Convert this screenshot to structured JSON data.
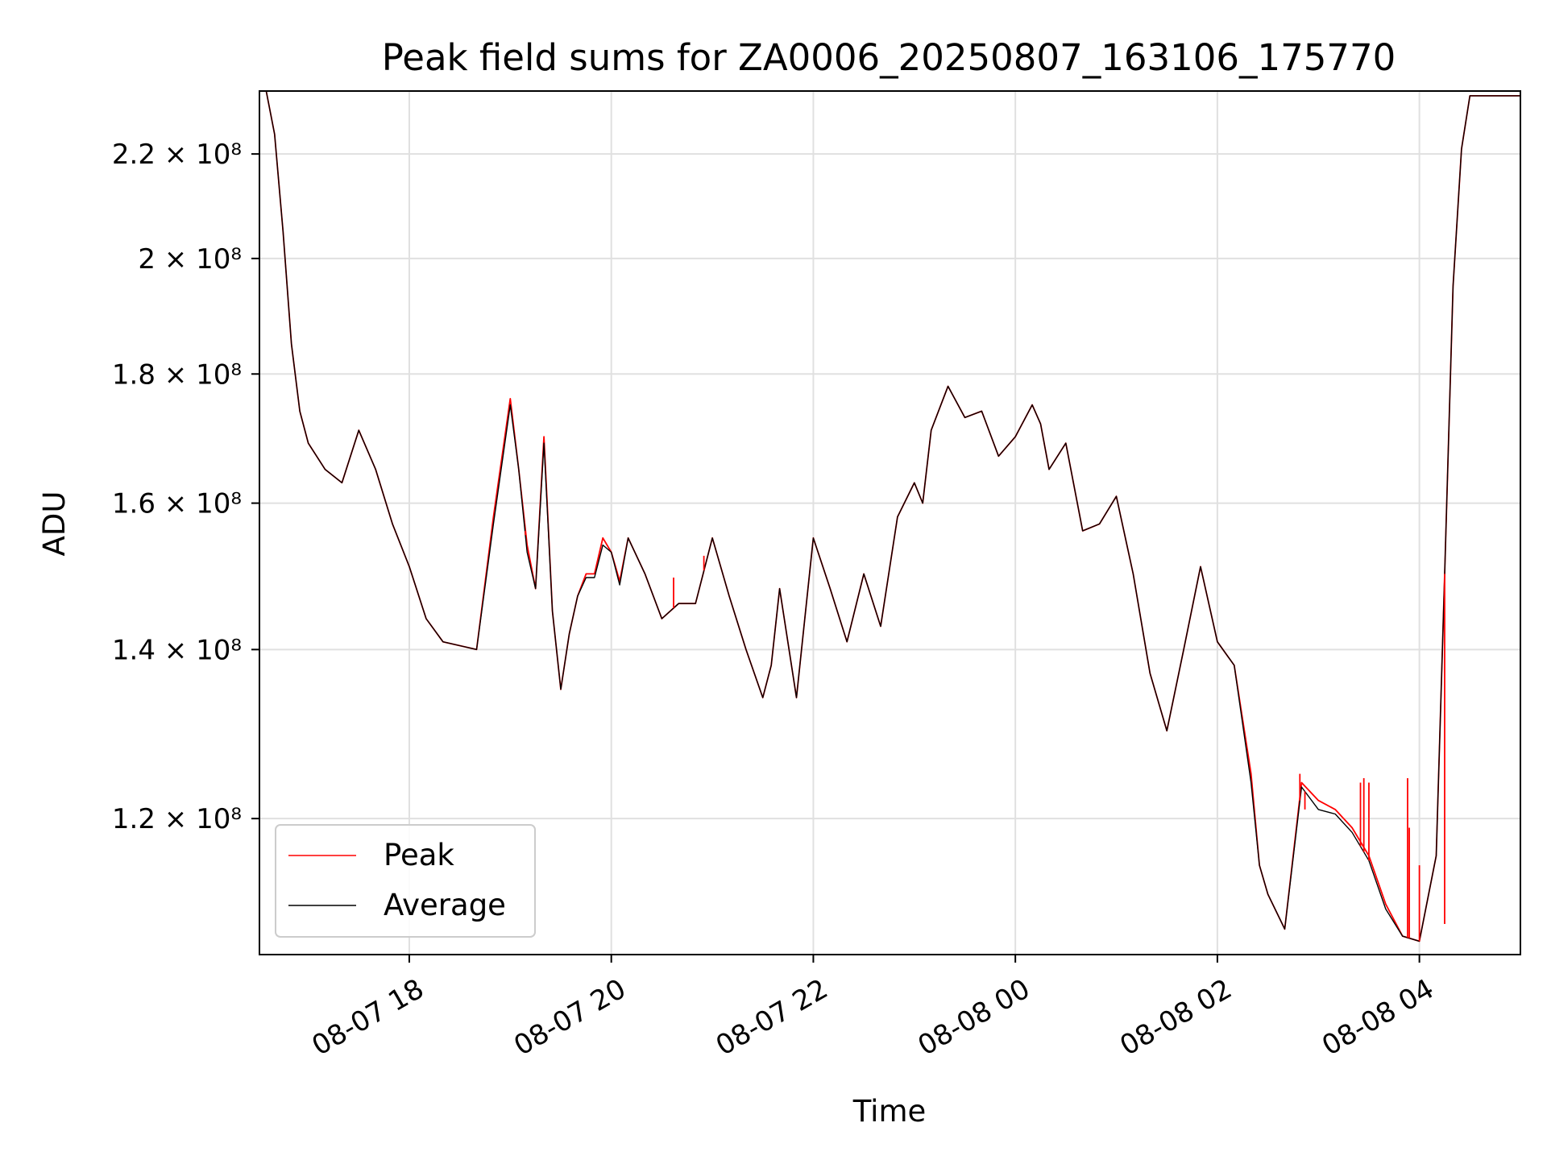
{
  "chart_data": {
    "type": "line",
    "title": "Peak field sums for ZA0006_20250807_163106_175770",
    "xlabel": "Time",
    "ylabel": "ADU",
    "yscale": "log",
    "grid": true,
    "legend_position": "lower-left",
    "xlim": [
      "2025-08-07 16:31",
      "2025-08-08 05:00"
    ],
    "ylim": [
      106000000,
      233000000
    ],
    "x_ticks": [
      {
        "value": "2025-08-07 18:00",
        "label": "08-07 18"
      },
      {
        "value": "2025-08-07 20:00",
        "label": "08-07 20"
      },
      {
        "value": "2025-08-07 22:00",
        "label": "08-07 22"
      },
      {
        "value": "2025-08-08 00:00",
        "label": "08-08 00"
      },
      {
        "value": "2025-08-08 02:00",
        "label": "08-08 02"
      },
      {
        "value": "2025-08-08 04:00",
        "label": "08-08 04"
      }
    ],
    "y_ticks": [
      {
        "value": 120000000,
        "label": "1.2 × 10⁸"
      },
      {
        "value": 140000000,
        "label": "1.4 × 10⁸"
      },
      {
        "value": 160000000,
        "label": "1.6 × 10⁸"
      },
      {
        "value": 180000000,
        "label": "1.8 × 10⁸"
      },
      {
        "value": 200000000,
        "label": "2 × 10⁸"
      },
      {
        "value": 220000000,
        "label": "2.2 × 10⁸"
      }
    ],
    "x": [
      "2025-08-07 16:31",
      "2025-08-07 16:35",
      "2025-08-07 16:40",
      "2025-08-07 16:45",
      "2025-08-07 16:50",
      "2025-08-07 16:55",
      "2025-08-07 17:00",
      "2025-08-07 17:10",
      "2025-08-07 17:20",
      "2025-08-07 17:30",
      "2025-08-07 17:40",
      "2025-08-07 17:50",
      "2025-08-07 18:00",
      "2025-08-07 18:10",
      "2025-08-07 18:20",
      "2025-08-07 18:30",
      "2025-08-07 18:40",
      "2025-08-07 18:50",
      "2025-08-07 19:00",
      "2025-08-07 19:05",
      "2025-08-07 19:10",
      "2025-08-07 19:15",
      "2025-08-07 19:20",
      "2025-08-07 19:25",
      "2025-08-07 19:30",
      "2025-08-07 19:35",
      "2025-08-07 19:40",
      "2025-08-07 19:45",
      "2025-08-07 19:50",
      "2025-08-07 19:55",
      "2025-08-07 20:00",
      "2025-08-07 20:05",
      "2025-08-07 20:10",
      "2025-08-07 20:20",
      "2025-08-07 20:30",
      "2025-08-07 20:40",
      "2025-08-07 20:50",
      "2025-08-07 21:00",
      "2025-08-07 21:10",
      "2025-08-07 21:20",
      "2025-08-07 21:30",
      "2025-08-07 21:35",
      "2025-08-07 21:40",
      "2025-08-07 21:50",
      "2025-08-07 22:00",
      "2025-08-07 22:10",
      "2025-08-07 22:20",
      "2025-08-07 22:30",
      "2025-08-07 22:40",
      "2025-08-07 22:50",
      "2025-08-07 23:00",
      "2025-08-07 23:05",
      "2025-08-07 23:10",
      "2025-08-07 23:20",
      "2025-08-07 23:30",
      "2025-08-07 23:40",
      "2025-08-07 23:50",
      "2025-08-08 00:00",
      "2025-08-08 00:10",
      "2025-08-08 00:15",
      "2025-08-08 00:20",
      "2025-08-08 00:30",
      "2025-08-08 00:40",
      "2025-08-08 00:50",
      "2025-08-08 01:00",
      "2025-08-08 01:10",
      "2025-08-08 01:20",
      "2025-08-08 01:30",
      "2025-08-08 01:40",
      "2025-08-08 01:50",
      "2025-08-08 02:00",
      "2025-08-08 02:10",
      "2025-08-08 02:20",
      "2025-08-08 02:25",
      "2025-08-08 02:30",
      "2025-08-08 02:40",
      "2025-08-08 02:50",
      "2025-08-08 03:00",
      "2025-08-08 03:10",
      "2025-08-08 03:20",
      "2025-08-08 03:30",
      "2025-08-08 03:40",
      "2025-08-08 03:50",
      "2025-08-08 04:00",
      "2025-08-08 04:10",
      "2025-08-08 04:15",
      "2025-08-08 04:20",
      "2025-08-08 04:25",
      "2025-08-08 04:30",
      "2025-08-08 04:40",
      "2025-08-08 05:00"
    ],
    "series": [
      {
        "name": "Peak",
        "color": "#ff0000",
        "values": [
          233000000,
          233000000,
          224000000,
          205000000,
          185000000,
          174000000,
          169000000,
          165000000,
          163000000,
          171000000,
          165000000,
          157000000,
          151000000,
          144000000,
          141000000,
          140500000,
          140000000,
          158000000,
          176000000,
          165000000,
          154000000,
          148000000,
          170000000,
          145000000,
          135000000,
          142000000,
          147000000,
          150000000,
          150000000,
          155000000,
          153000000,
          149000000,
          155000000,
          150000000,
          144000000,
          146000000,
          146000000,
          155000000,
          147000000,
          140000000,
          134000000,
          138000000,
          148000000,
          134000000,
          155000000,
          148000000,
          141000000,
          150000000,
          143000000,
          158000000,
          163000000,
          160000000,
          171000000,
          178000000,
          173000000,
          174000000,
          167000000,
          170000000,
          175000000,
          172000000,
          165000000,
          169000000,
          156000000,
          157000000,
          161000000,
          150000000,
          137000000,
          130000000,
          140000000,
          151000000,
          141000000,
          138000000,
          125000000,
          115000000,
          112000000,
          108500000,
          124000000,
          122000000,
          121000000,
          119000000,
          116000000,
          111000000,
          107800000,
          107300000,
          116000000,
          150000000,
          195000000,
          221000000,
          232000000,
          232000000,
          232000000
        ]
      },
      {
        "name": "Average",
        "color": "#000000",
        "values": [
          233000000,
          233000000,
          224000000,
          205000000,
          185000000,
          174000000,
          169000000,
          165000000,
          163000000,
          171000000,
          165000000,
          157000000,
          151000000,
          144000000,
          141000000,
          140500000,
          140000000,
          157000000,
          175000000,
          165000000,
          153000000,
          148000000,
          169000000,
          145000000,
          135000000,
          142000000,
          147000000,
          149500000,
          149500000,
          154000000,
          153000000,
          148500000,
          155000000,
          150000000,
          144000000,
          146000000,
          146000000,
          155000000,
          147000000,
          140000000,
          134000000,
          138000000,
          148000000,
          134000000,
          155000000,
          148000000,
          141000000,
          150000000,
          143000000,
          158000000,
          163000000,
          160000000,
          171000000,
          178000000,
          173000000,
          174000000,
          167000000,
          170000000,
          175000000,
          172000000,
          165000000,
          169000000,
          156000000,
          157000000,
          161000000,
          150000000,
          137000000,
          130000000,
          140000000,
          151000000,
          141000000,
          138000000,
          124000000,
          115000000,
          112000000,
          108500000,
          123500000,
          121000000,
          120500000,
          118500000,
          115500000,
          110500000,
          107800000,
          107300000,
          116000000,
          150000000,
          195000000,
          221000000,
          232000000,
          232000000,
          232000000
        ]
      }
    ],
    "peak_spikes": [
      {
        "x": "2025-08-08 02:49",
        "value": 125000000
      },
      {
        "x": "2025-08-08 02:52",
        "value": 121000000
      },
      {
        "x": "2025-08-08 03:25",
        "value": 124000000
      },
      {
        "x": "2025-08-08 03:27",
        "value": 124500000
      },
      {
        "x": "2025-08-08 03:30",
        "value": 124000000
      },
      {
        "x": "2025-08-08 03:53",
        "value": 124500000
      },
      {
        "x": "2025-08-08 03:54",
        "value": 119000000
      },
      {
        "x": "2025-08-08 04:00",
        "value": 115000000
      },
      {
        "x": "2025-08-08 04:15",
        "value": 109000000
      },
      {
        "x": "2025-08-07 20:37",
        "value": 149500000
      },
      {
        "x": "2025-08-07 20:55",
        "value": 152500000
      },
      {
        "x": "2025-08-07 19:09",
        "value": 156000000
      }
    ]
  }
}
